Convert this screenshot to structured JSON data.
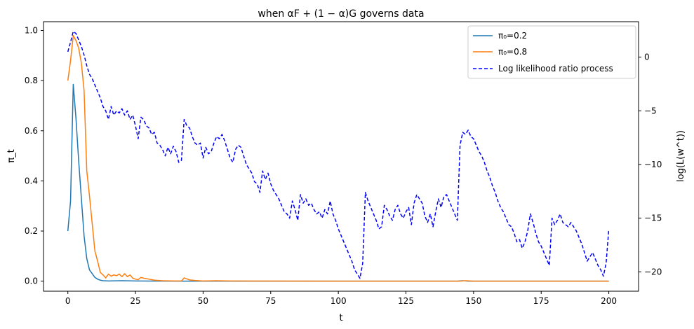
{
  "chart_data": {
    "type": "line",
    "title": "when αF + (1 − α)G governs data",
    "xlabel": "t",
    "ylabel": "π_t",
    "ylabel_right": "log(L(w^t))",
    "xlim": [
      -9,
      211
    ],
    "ylim_left": [
      -0.04,
      1.035
    ],
    "ylim_right": [
      -21.8,
      3.3
    ],
    "x_ticks": [
      0,
      25,
      50,
      75,
      100,
      125,
      150,
      175,
      200
    ],
    "y_left_ticks": [
      0.0,
      0.2,
      0.4,
      0.6,
      0.8,
      1.0
    ],
    "y_left_tick_labels": [
      "0.0",
      "0.2",
      "0.4",
      "0.6",
      "0.8",
      "1.0"
    ],
    "y_right_ticks": [
      0,
      -5,
      -10,
      -15,
      -20
    ],
    "y_right_tick_labels": [
      "0",
      "−5",
      "−10",
      "−15",
      "−20"
    ],
    "legend_position": "top-right",
    "series": [
      {
        "name": "π₀=0.2",
        "axis": "left",
        "color": "#1f77b4",
        "style": "solid",
        "points": [
          [
            0,
            0.2
          ],
          [
            1,
            0.32
          ],
          [
            2,
            0.785
          ],
          [
            3,
            0.65
          ],
          [
            4,
            0.48
          ],
          [
            5,
            0.33
          ],
          [
            6,
            0.18
          ],
          [
            7,
            0.09
          ],
          [
            8,
            0.045
          ],
          [
            9,
            0.03
          ],
          [
            10,
            0.015
          ],
          [
            11,
            0.008
          ],
          [
            12,
            0.004
          ],
          [
            13,
            0.002
          ],
          [
            15,
            0.001
          ],
          [
            20,
            0.002
          ],
          [
            25,
            0.001
          ],
          [
            30,
            0.0005
          ],
          [
            40,
            0.0002
          ],
          [
            60,
            0.0001
          ],
          [
            100,
            0.0
          ],
          [
            144,
            0.0
          ],
          [
            146,
            0.002
          ],
          [
            148,
            0.0
          ],
          [
            200,
            0.0
          ]
        ]
      },
      {
        "name": "π₀=0.8",
        "axis": "left",
        "color": "#ff7f0e",
        "style": "solid",
        "points": [
          [
            0,
            0.8
          ],
          [
            1,
            0.88
          ],
          [
            2,
            0.98
          ],
          [
            3,
            0.96
          ],
          [
            4,
            0.93
          ],
          [
            5,
            0.87
          ],
          [
            6,
            0.76
          ],
          [
            7,
            0.44
          ],
          [
            8,
            0.34
          ],
          [
            9,
            0.23
          ],
          [
            10,
            0.12
          ],
          [
            11,
            0.08
          ],
          [
            12,
            0.035
          ],
          [
            13,
            0.025
          ],
          [
            14,
            0.013
          ],
          [
            15,
            0.028
          ],
          [
            16,
            0.02
          ],
          [
            17,
            0.025
          ],
          [
            18,
            0.022
          ],
          [
            19,
            0.028
          ],
          [
            20,
            0.018
          ],
          [
            21,
            0.03
          ],
          [
            22,
            0.018
          ],
          [
            23,
            0.025
          ],
          [
            24,
            0.012
          ],
          [
            25,
            0.008
          ],
          [
            26,
            0.006
          ],
          [
            27,
            0.015
          ],
          [
            28,
            0.012
          ],
          [
            30,
            0.008
          ],
          [
            32,
            0.004
          ],
          [
            35,
            0.002
          ],
          [
            40,
            0.001
          ],
          [
            42,
            0.001
          ],
          [
            43,
            0.013
          ],
          [
            44,
            0.009
          ],
          [
            45,
            0.005
          ],
          [
            47,
            0.003
          ],
          [
            50,
            0.001
          ],
          [
            55,
            0.002
          ],
          [
            60,
            0.001
          ],
          [
            70,
            0.0005
          ],
          [
            100,
            0.0
          ],
          [
            145,
            0.0
          ],
          [
            147,
            0.002
          ],
          [
            150,
            0.0
          ],
          [
            200,
            0.0
          ]
        ]
      },
      {
        "name": "Log likelihood ratio process",
        "axis": "right",
        "color": "#0000ff",
        "style": "dashed",
        "points": [
          [
            0,
            0.5
          ],
          [
            1,
            1.4
          ],
          [
            2,
            2.4
          ],
          [
            3,
            2.2
          ],
          [
            4,
            1.6
          ],
          [
            5,
            1.0
          ],
          [
            6,
            0.2
          ],
          [
            7,
            -0.8
          ],
          [
            8,
            -1.6
          ],
          [
            9,
            -2.0
          ],
          [
            10,
            -2.6
          ],
          [
            11,
            -3.2
          ],
          [
            12,
            -3.8
          ],
          [
            13,
            -4.6
          ],
          [
            14,
            -5.0
          ],
          [
            15,
            -5.8
          ],
          [
            16,
            -4.6
          ],
          [
            17,
            -5.4
          ],
          [
            18,
            -5.0
          ],
          [
            19,
            -5.2
          ],
          [
            20,
            -4.8
          ],
          [
            21,
            -5.4
          ],
          [
            22,
            -5.0
          ],
          [
            23,
            -5.8
          ],
          [
            24,
            -5.4
          ],
          [
            25,
            -6.4
          ],
          [
            26,
            -7.6
          ],
          [
            27,
            -5.6
          ],
          [
            28,
            -5.8
          ],
          [
            29,
            -6.4
          ],
          [
            30,
            -6.6
          ],
          [
            31,
            -7.2
          ],
          [
            32,
            -7.0
          ],
          [
            33,
            -8.0
          ],
          [
            34,
            -8.2
          ],
          [
            35,
            -8.6
          ],
          [
            36,
            -9.2
          ],
          [
            37,
            -8.4
          ],
          [
            38,
            -9.0
          ],
          [
            39,
            -8.3
          ],
          [
            40,
            -8.8
          ],
          [
            41,
            -9.8
          ],
          [
            42,
            -9.6
          ],
          [
            43,
            -5.8
          ],
          [
            44,
            -6.4
          ],
          [
            45,
            -6.6
          ],
          [
            46,
            -7.4
          ],
          [
            47,
            -8.0
          ],
          [
            48,
            -8.2
          ],
          [
            49,
            -8.0
          ],
          [
            50,
            -9.4
          ],
          [
            51,
            -8.4
          ],
          [
            52,
            -9.0
          ],
          [
            53,
            -8.8
          ],
          [
            54,
            -8.0
          ],
          [
            55,
            -7.4
          ],
          [
            56,
            -7.6
          ],
          [
            57,
            -7.2
          ],
          [
            58,
            -7.8
          ],
          [
            59,
            -8.6
          ],
          [
            60,
            -9.4
          ],
          [
            61,
            -9.8
          ],
          [
            62,
            -8.6
          ],
          [
            63,
            -8.2
          ],
          [
            64,
            -8.4
          ],
          [
            65,
            -9.2
          ],
          [
            66,
            -10.0
          ],
          [
            67,
            -10.4
          ],
          [
            68,
            -10.8
          ],
          [
            69,
            -11.6
          ],
          [
            70,
            -11.8
          ],
          [
            71,
            -12.6
          ],
          [
            72,
            -10.6
          ],
          [
            73,
            -11.4
          ],
          [
            74,
            -10.8
          ],
          [
            75,
            -11.8
          ],
          [
            76,
            -12.4
          ],
          [
            77,
            -12.8
          ],
          [
            78,
            -13.2
          ],
          [
            79,
            -13.8
          ],
          [
            80,
            -14.4
          ],
          [
            81,
            -14.6
          ],
          [
            82,
            -15.0
          ],
          [
            83,
            -13.4
          ],
          [
            84,
            -14.2
          ],
          [
            85,
            -15.2
          ],
          [
            86,
            -12.8
          ],
          [
            87,
            -13.6
          ],
          [
            88,
            -13.2
          ],
          [
            89,
            -13.8
          ],
          [
            90,
            -13.6
          ],
          [
            91,
            -14.2
          ],
          [
            92,
            -14.6
          ],
          [
            93,
            -14.4
          ],
          [
            94,
            -15.0
          ],
          [
            95,
            -14.2
          ],
          [
            96,
            -14.6
          ],
          [
            97,
            -13.4
          ],
          [
            98,
            -14.6
          ],
          [
            99,
            -15.2
          ],
          [
            100,
            -16.0
          ],
          [
            101,
            -16.6
          ],
          [
            102,
            -17.2
          ],
          [
            103,
            -17.8
          ],
          [
            104,
            -18.4
          ],
          [
            105,
            -19.0
          ],
          [
            106,
            -19.8
          ],
          [
            107,
            -20.2
          ],
          [
            108,
            -20.6
          ],
          [
            109,
            -19.2
          ],
          [
            110,
            -12.6
          ],
          [
            111,
            -13.4
          ],
          [
            112,
            -14.0
          ],
          [
            113,
            -14.6
          ],
          [
            114,
            -15.2
          ],
          [
            115,
            -16.0
          ],
          [
            116,
            -15.8
          ],
          [
            117,
            -13.8
          ],
          [
            118,
            -14.2
          ],
          [
            119,
            -14.8
          ],
          [
            120,
            -15.2
          ],
          [
            121,
            -14.2
          ],
          [
            122,
            -13.8
          ],
          [
            123,
            -14.6
          ],
          [
            124,
            -15.0
          ],
          [
            125,
            -14.4
          ],
          [
            126,
            -14.0
          ],
          [
            127,
            -15.6
          ],
          [
            128,
            -13.6
          ],
          [
            129,
            -12.8
          ],
          [
            130,
            -13.2
          ],
          [
            131,
            -13.6
          ],
          [
            132,
            -14.8
          ],
          [
            133,
            -15.4
          ],
          [
            134,
            -14.6
          ],
          [
            135,
            -15.8
          ],
          [
            136,
            -14.4
          ],
          [
            137,
            -13.2
          ],
          [
            138,
            -14.0
          ],
          [
            139,
            -13.0
          ],
          [
            140,
            -12.8
          ],
          [
            141,
            -13.4
          ],
          [
            142,
            -14.0
          ],
          [
            143,
            -14.6
          ],
          [
            144,
            -15.2
          ],
          [
            145,
            -8.2
          ],
          [
            146,
            -7.0
          ],
          [
            147,
            -7.2
          ],
          [
            148,
            -6.8
          ],
          [
            149,
            -7.4
          ],
          [
            150,
            -7.6
          ],
          [
            151,
            -8.2
          ],
          [
            152,
            -8.8
          ],
          [
            153,
            -9.2
          ],
          [
            154,
            -9.8
          ],
          [
            155,
            -10.6
          ],
          [
            156,
            -11.2
          ],
          [
            157,
            -12.0
          ],
          [
            158,
            -12.6
          ],
          [
            159,
            -13.4
          ],
          [
            160,
            -14.0
          ],
          [
            161,
            -14.4
          ],
          [
            162,
            -15.0
          ],
          [
            163,
            -15.6
          ],
          [
            164,
            -15.8
          ],
          [
            165,
            -16.4
          ],
          [
            166,
            -17.2
          ],
          [
            167,
            -17.0
          ],
          [
            168,
            -17.8
          ],
          [
            169,
            -17.2
          ],
          [
            170,
            -16.2
          ],
          [
            171,
            -14.6
          ],
          [
            172,
            -15.4
          ],
          [
            173,
            -16.4
          ],
          [
            174,
            -17.2
          ],
          [
            175,
            -17.6
          ],
          [
            176,
            -18.2
          ],
          [
            177,
            -18.8
          ],
          [
            178,
            -19.4
          ],
          [
            179,
            -15.0
          ],
          [
            180,
            -15.6
          ],
          [
            181,
            -15.2
          ],
          [
            182,
            -14.6
          ],
          [
            183,
            -15.4
          ],
          [
            184,
            -15.6
          ],
          [
            185,
            -15.8
          ],
          [
            186,
            -15.4
          ],
          [
            187,
            -15.8
          ],
          [
            188,
            -16.2
          ],
          [
            189,
            -16.8
          ],
          [
            190,
            -17.4
          ],
          [
            191,
            -18.2
          ],
          [
            192,
            -19.0
          ],
          [
            193,
            -18.6
          ],
          [
            194,
            -18.2
          ],
          [
            195,
            -18.8
          ],
          [
            196,
            -19.4
          ],
          [
            197,
            -19.8
          ],
          [
            198,
            -20.4
          ],
          [
            199,
            -19.2
          ],
          [
            200,
            -16.0
          ]
        ]
      }
    ]
  }
}
